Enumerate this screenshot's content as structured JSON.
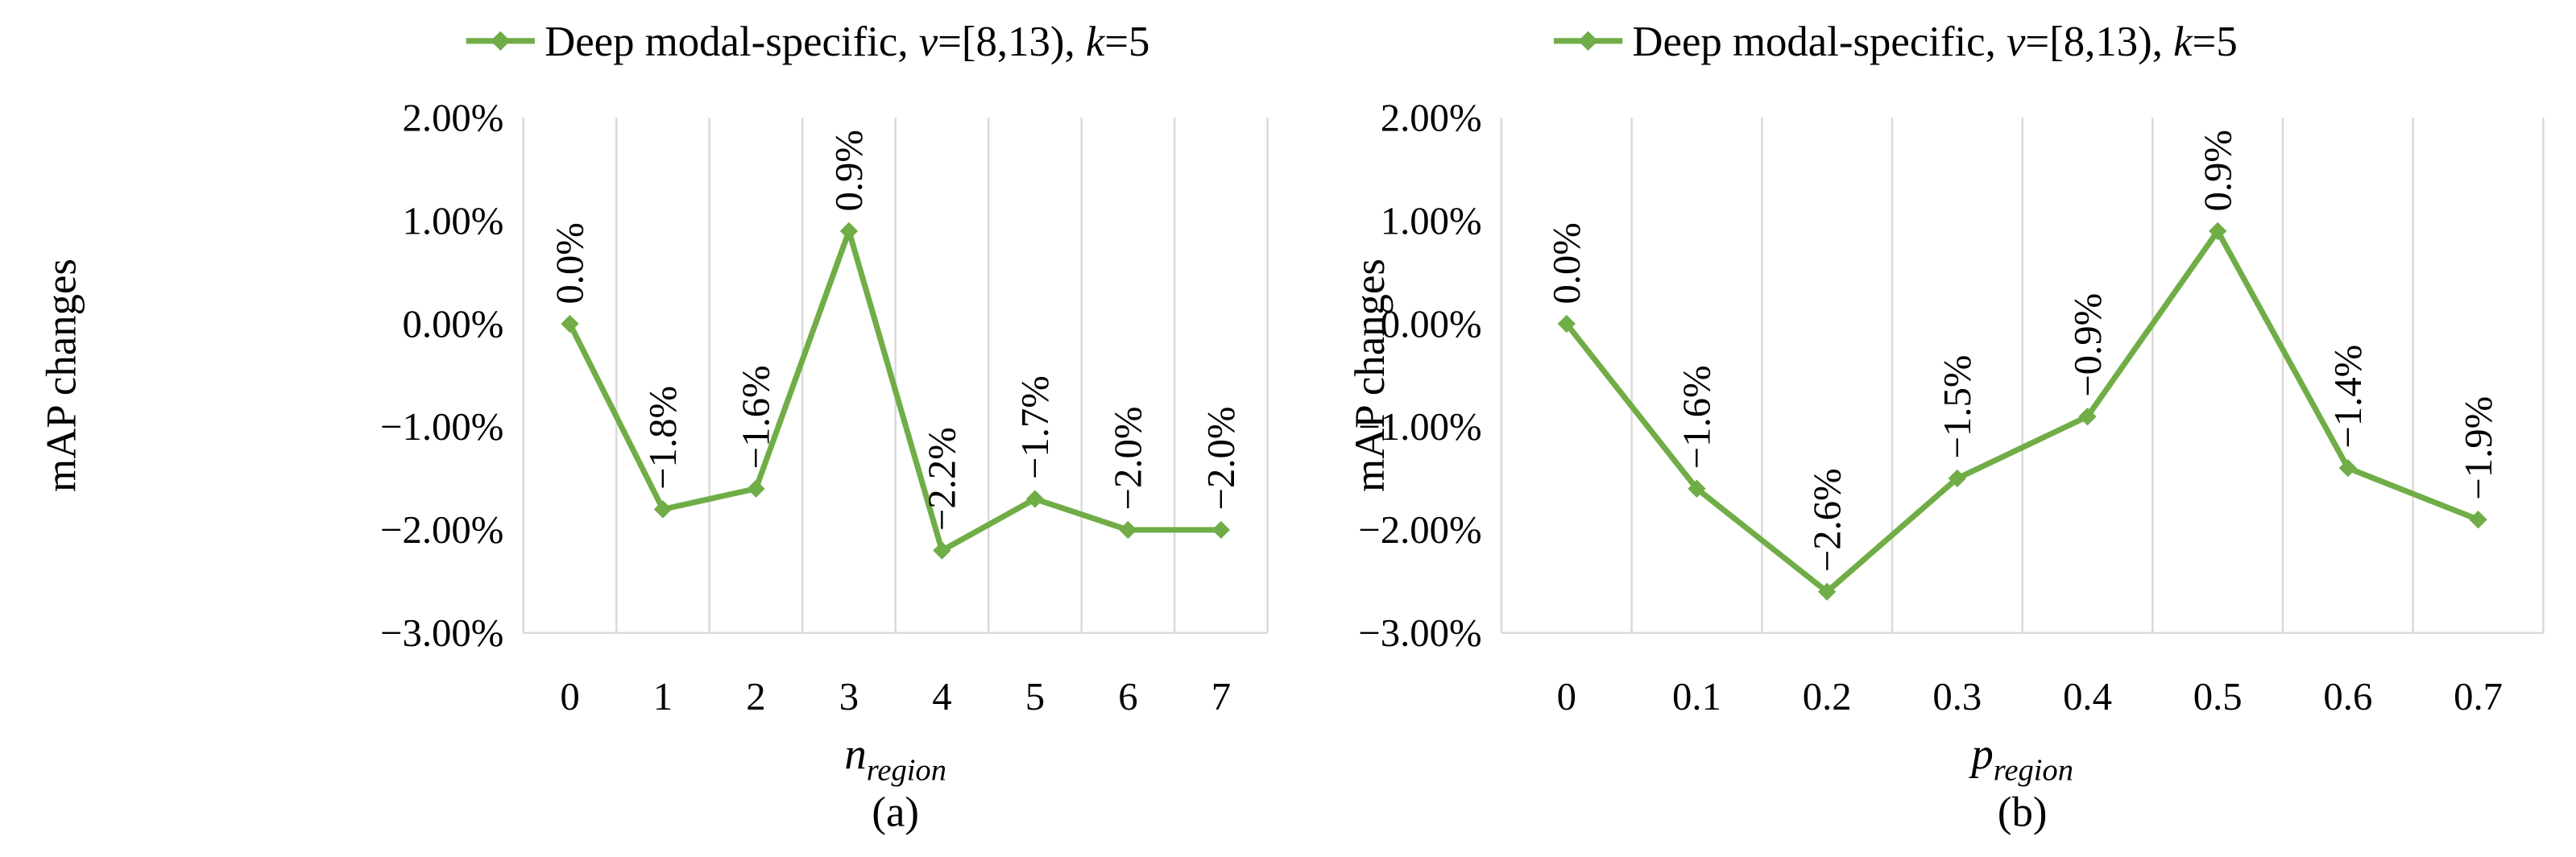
{
  "colors": {
    "series": "#70AD47",
    "grid": "#D9D9D9",
    "text": "#000000"
  },
  "chart_data": [
    {
      "type": "line",
      "panel_label": "(a)",
      "legend": {
        "position": "top-left",
        "name_prefix": "Deep modal-specific, ",
        "v_symbol": "v",
        "v_value": "=[8,13), ",
        "k_symbol": "k",
        "k_value": "=5"
      },
      "ylabel": "mAP changes",
      "xlabel": {
        "base": "n",
        "sub": "region"
      },
      "categories": [
        "0",
        "1",
        "2",
        "3",
        "4",
        "5",
        "6",
        "7"
      ],
      "values": [
        0.0,
        -1.8,
        -1.6,
        0.9,
        -2.2,
        -1.7,
        -2.0,
        -2.0
      ],
      "data_labels": [
        "0.0%",
        "−1.8%",
        "−1.6%",
        "0.9%",
        "−2.2%",
        "−1.7%",
        "−2.0%",
        "−2.0%"
      ],
      "ylim": [
        -3,
        2
      ],
      "ytick_values": [
        2,
        1,
        0,
        -1,
        -2,
        -3
      ],
      "yticks": [
        "2.00%",
        "1.00%",
        "0.00%",
        "−1.00%",
        "−2.00%",
        "−3.00%"
      ],
      "grid": "vertical"
    },
    {
      "type": "line",
      "panel_label": "(b)",
      "legend": {
        "position": "top-left",
        "name_prefix": "Deep modal-specific, ",
        "v_symbol": "v",
        "v_value": "=[8,13), ",
        "k_symbol": "k",
        "k_value": "=5"
      },
      "ylabel": "mAP changes",
      "xlabel": {
        "base": "p",
        "sub": "region"
      },
      "categories": [
        "0",
        "0.1",
        "0.2",
        "0.3",
        "0.4",
        "0.5",
        "0.6",
        "0.7"
      ],
      "values": [
        0.0,
        -1.6,
        -2.6,
        -1.5,
        -0.9,
        0.9,
        -1.4,
        -1.9
      ],
      "data_labels": [
        "0.0%",
        "−1.6%",
        "−2.6%",
        "−1.5%",
        "−0.9%",
        "0.9%",
        "−1.4%",
        "−1.9%"
      ],
      "ylim": [
        -3,
        2
      ],
      "ytick_values": [
        2,
        1,
        0,
        -1,
        -2,
        -3
      ],
      "yticks": [
        "2.00%",
        "1.00%",
        "0.00%",
        "−1.00%",
        "−2.00%",
        "−3.00%"
      ],
      "grid": "vertical"
    }
  ]
}
